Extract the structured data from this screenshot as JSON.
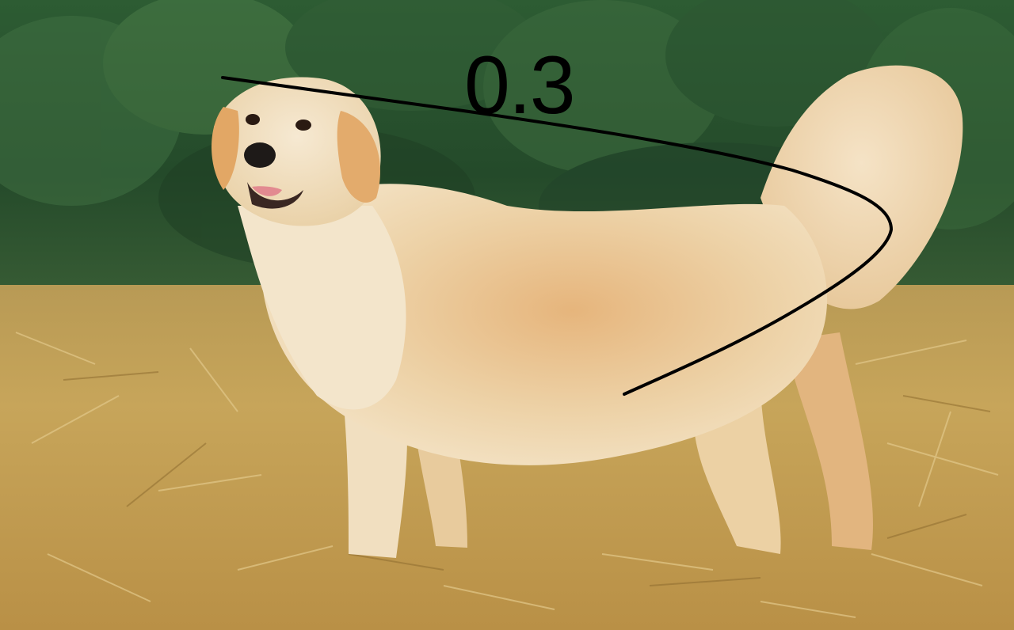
{
  "annotation": {
    "label": "0.3",
    "stroke_color": "#000000"
  },
  "photo": {
    "background_color": "#2f5a35",
    "field_color": "#c9a95a",
    "dog_color": "#e9c895"
  }
}
